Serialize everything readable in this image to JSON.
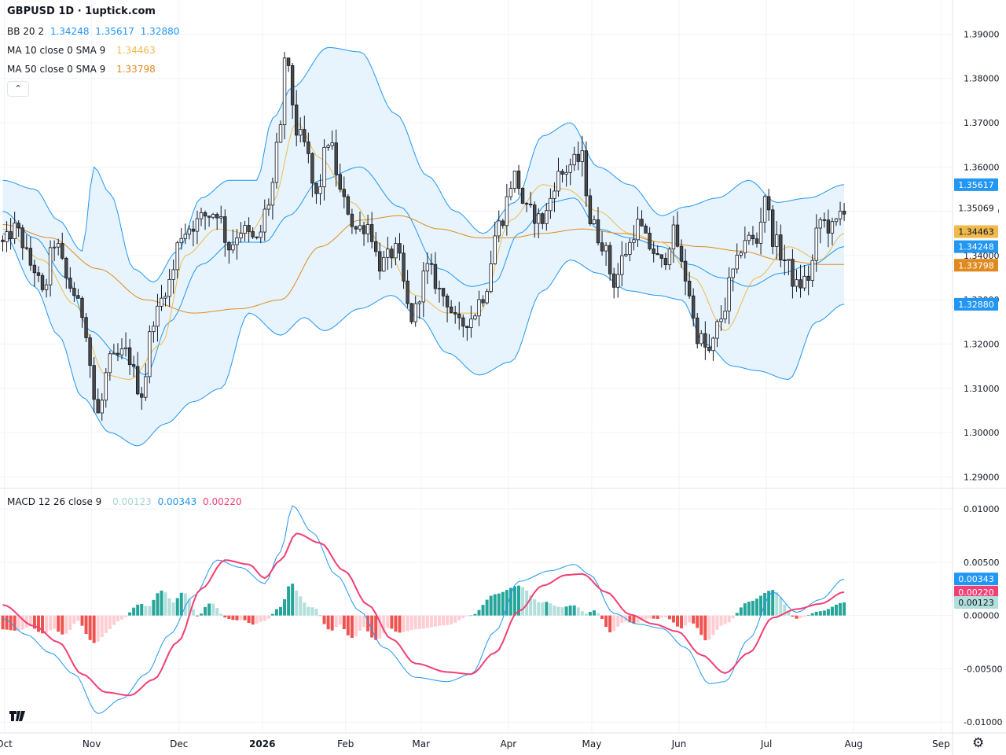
{
  "title": "GBPUSD 1D · 1uptick.com",
  "legend": {
    "bb": {
      "label": "BB 20 2",
      "basis": "1.34248",
      "upper": "1.35617",
      "lower": "1.32880"
    },
    "ma10": {
      "label": "MA 10 close 0 SMA 9",
      "value": "1.34463"
    },
    "ma50": {
      "label": "MA 50 close 0 SMA 9",
      "value": "1.33798"
    },
    "macd": {
      "label": "MACD 12 26 close 9",
      "hist": "0.00123",
      "macd": "0.00343",
      "signal": "0.00220"
    }
  },
  "colors": {
    "bb_line": "#2196f3",
    "bb_fill": "#e3f2fd",
    "ma10": "#f0b94b",
    "ma50": "#e08a1e",
    "macd_line": "#2196f3",
    "signal_line": "#f23f75",
    "hist_up_strong": "#26a69a",
    "hist_up_weak": "#b2dfdb",
    "hist_down_strong": "#ef5350",
    "hist_down_weak": "#ffcdd2",
    "candle_up_body": "#ffffff",
    "candle_down_body": "#4a4a4a"
  },
  "badges": {
    "bb_upper": "1.35617",
    "last_price": "1.35069",
    "ma10": "1.34463",
    "bb_basis": "1.34248",
    "ma50": "1.33798",
    "bb_lower": "1.32880",
    "macd": "0.00343",
    "signal": "0.00220",
    "hist": "0.00123"
  },
  "icons": {
    "logo": "tradingview-logo-icon",
    "settings": "gear-icon",
    "collapse": "chevron-up-icon"
  },
  "chart_data": [
    {
      "type": "candlestick",
      "title": "GBPUSD 1D",
      "x_ticks": [
        "Oct",
        "Nov",
        "Dec",
        "2026",
        "Feb",
        "Mar",
        "Apr",
        "May",
        "Jun",
        "Jul",
        "Aug",
        "Sep"
      ],
      "y_ticks": [
        "1.39000",
        "1.38000",
        "1.37000",
        "1.36000",
        "1.35000",
        "1.34000",
        "1.33000",
        "1.32000",
        "1.31000",
        "1.30000",
        "1.29000"
      ],
      "ylim": [
        1.289,
        1.3915
      ],
      "close_anchors": [
        [
          0,
          1.3425
        ],
        [
          3,
          1.346
        ],
        [
          8,
          1.337
        ],
        [
          10,
          1.331
        ],
        [
          13,
          1.343
        ],
        [
          17,
          1.333
        ],
        [
          20,
          1.327
        ],
        [
          24,
          1.304
        ],
        [
          27,
          1.316
        ],
        [
          31,
          1.318
        ],
        [
          35,
          1.309
        ],
        [
          38,
          1.326
        ],
        [
          42,
          1.334
        ],
        [
          45,
          1.345
        ],
        [
          48,
          1.347
        ],
        [
          51,
          1.349
        ],
        [
          54,
          1.35
        ],
        [
          57,
          1.342
        ],
        [
          60,
          1.346
        ],
        [
          64,
          1.343
        ],
        [
          67,
          1.352
        ],
        [
          70,
          1.368
        ],
        [
          71,
          1.385
        ],
        [
          72,
          1.381
        ],
        [
          74,
          1.368
        ],
        [
          76,
          1.365
        ],
        [
          79,
          1.353
        ],
        [
          82,
          1.366
        ],
        [
          86,
          1.352
        ],
        [
          89,
          1.346
        ],
        [
          92,
          1.347
        ],
        [
          95,
          1.338
        ],
        [
          99,
          1.341
        ],
        [
          103,
          1.326
        ],
        [
          107,
          1.337
        ],
        [
          111,
          1.331
        ],
        [
          115,
          1.324
        ],
        [
          118,
          1.326
        ],
        [
          121,
          1.331
        ],
        [
          125,
          1.347
        ],
        [
          129,
          1.358
        ],
        [
          132,
          1.35
        ],
        [
          136,
          1.348
        ],
        [
          140,
          1.358
        ],
        [
          144,
          1.361
        ],
        [
          146,
          1.362
        ],
        [
          148,
          1.348
        ],
        [
          151,
          1.343
        ],
        [
          154,
          1.334
        ],
        [
          157,
          1.341
        ],
        [
          160,
          1.347
        ],
        [
          163,
          1.342
        ],
        [
          166,
          1.338
        ],
        [
          169,
          1.345
        ],
        [
          172,
          1.335
        ],
        [
          175,
          1.322
        ],
        [
          178,
          1.318
        ],
        [
          181,
          1.326
        ],
        [
          184,
          1.336
        ],
        [
          187,
          1.344
        ],
        [
          190,
          1.343
        ],
        [
          192,
          1.354
        ],
        [
          194,
          1.344
        ],
        [
          197,
          1.339
        ],
        [
          200,
          1.333
        ],
        [
          203,
          1.335
        ],
        [
          206,
          1.348
        ],
        [
          209,
          1.346
        ],
        [
          212,
          1.351
        ]
      ],
      "bb_upper_anchors": [
        [
          0,
          1.357
        ],
        [
          8,
          1.355
        ],
        [
          14,
          1.348
        ],
        [
          20,
          1.341
        ],
        [
          23,
          1.36
        ],
        [
          27,
          1.354
        ],
        [
          33,
          1.337
        ],
        [
          38,
          1.334
        ],
        [
          44,
          1.341
        ],
        [
          50,
          1.353
        ],
        [
          57,
          1.357
        ],
        [
          64,
          1.357
        ],
        [
          68,
          1.371
        ],
        [
          73,
          1.378
        ],
        [
          82,
          1.387
        ],
        [
          90,
          1.386
        ],
        [
          99,
          1.372
        ],
        [
          107,
          1.358
        ],
        [
          114,
          1.35
        ],
        [
          121,
          1.345
        ],
        [
          129,
          1.352
        ],
        [
          136,
          1.367
        ],
        [
          143,
          1.37
        ],
        [
          150,
          1.36
        ],
        [
          158,
          1.356
        ],
        [
          166,
          1.349
        ],
        [
          172,
          1.351
        ],
        [
          180,
          1.353
        ],
        [
          188,
          1.357
        ],
        [
          195,
          1.352
        ],
        [
          203,
          1.353
        ],
        [
          212,
          1.356
        ]
      ],
      "bb_basis_anchors": [
        [
          0,
          1.35
        ],
        [
          8,
          1.344
        ],
        [
          16,
          1.335
        ],
        [
          22,
          1.323
        ],
        [
          30,
          1.317
        ],
        [
          36,
          1.313
        ],
        [
          42,
          1.325
        ],
        [
          50,
          1.338
        ],
        [
          58,
          1.343
        ],
        [
          66,
          1.343
        ],
        [
          72,
          1.349
        ],
        [
          80,
          1.357
        ],
        [
          90,
          1.36
        ],
        [
          100,
          1.351
        ],
        [
          110,
          1.337
        ],
        [
          118,
          1.333
        ],
        [
          124,
          1.334
        ],
        [
          130,
          1.345
        ],
        [
          138,
          1.352
        ],
        [
          144,
          1.353
        ],
        [
          150,
          1.346
        ],
        [
          158,
          1.344
        ],
        [
          166,
          1.342
        ],
        [
          173,
          1.338
        ],
        [
          181,
          1.335
        ],
        [
          188,
          1.333
        ],
        [
          196,
          1.336
        ],
        [
          204,
          1.338
        ],
        [
          212,
          1.342
        ]
      ],
      "bb_lower_anchors": [
        [
          0,
          1.345
        ],
        [
          8,
          1.333
        ],
        [
          14,
          1.322
        ],
        [
          20,
          1.308
        ],
        [
          27,
          1.3
        ],
        [
          34,
          1.297
        ],
        [
          41,
          1.302
        ],
        [
          48,
          1.307
        ],
        [
          55,
          1.31
        ],
        [
          62,
          1.327
        ],
        [
          70,
          1.322
        ],
        [
          76,
          1.326
        ],
        [
          81,
          1.323
        ],
        [
          90,
          1.328
        ],
        [
          98,
          1.331
        ],
        [
          105,
          1.326
        ],
        [
          112,
          1.318
        ],
        [
          120,
          1.313
        ],
        [
          128,
          1.316
        ],
        [
          136,
          1.332
        ],
        [
          143,
          1.339
        ],
        [
          150,
          1.336
        ],
        [
          158,
          1.332
        ],
        [
          165,
          1.331
        ],
        [
          171,
          1.33
        ],
        [
          177,
          1.32
        ],
        [
          184,
          1.315
        ],
        [
          190,
          1.314
        ],
        [
          198,
          1.312
        ],
        [
          205,
          1.325
        ],
        [
          212,
          1.329
        ]
      ],
      "ma10_anchors": [
        [
          0,
          1.346
        ],
        [
          10,
          1.339
        ],
        [
          18,
          1.329
        ],
        [
          26,
          1.313
        ],
        [
          32,
          1.312
        ],
        [
          40,
          1.32
        ],
        [
          46,
          1.34
        ],
        [
          54,
          1.346
        ],
        [
          62,
          1.345
        ],
        [
          68,
          1.352
        ],
        [
          74,
          1.37
        ],
        [
          80,
          1.362
        ],
        [
          88,
          1.352
        ],
        [
          96,
          1.342
        ],
        [
          104,
          1.331
        ],
        [
          112,
          1.327
        ],
        [
          120,
          1.327
        ],
        [
          128,
          1.348
        ],
        [
          136,
          1.356
        ],
        [
          142,
          1.355
        ],
        [
          150,
          1.35
        ],
        [
          158,
          1.345
        ],
        [
          166,
          1.343
        ],
        [
          174,
          1.335
        ],
        [
          182,
          1.323
        ],
        [
          190,
          1.335
        ],
        [
          198,
          1.342
        ],
        [
          206,
          1.339
        ],
        [
          212,
          1.345
        ]
      ],
      "ma50_anchors": [
        [
          0,
          1.347
        ],
        [
          12,
          1.344
        ],
        [
          24,
          1.337
        ],
        [
          36,
          1.33
        ],
        [
          48,
          1.327
        ],
        [
          60,
          1.328
        ],
        [
          70,
          1.33
        ],
        [
          80,
          1.342
        ],
        [
          90,
          1.348
        ],
        [
          100,
          1.349
        ],
        [
          110,
          1.346
        ],
        [
          120,
          1.344
        ],
        [
          128,
          1.344
        ],
        [
          136,
          1.345
        ],
        [
          146,
          1.346
        ],
        [
          156,
          1.345
        ],
        [
          166,
          1.343
        ],
        [
          176,
          1.342
        ],
        [
          186,
          1.341
        ],
        [
          196,
          1.339
        ],
        [
          206,
          1.338
        ],
        [
          212,
          1.338
        ]
      ],
      "series": [
        {
          "name": "BB 20 2",
          "values": [
            "1.34248",
            "1.35617",
            "1.32880"
          ]
        },
        {
          "name": "MA 10 close 0 SMA 9",
          "values": [
            "1.34463"
          ]
        },
        {
          "name": "MA 50 close 0 SMA 9",
          "values": [
            "1.33798"
          ]
        }
      ]
    },
    {
      "type": "line",
      "title": "MACD 12 26 close 9",
      "y_ticks": [
        "0.01000",
        "0.00500",
        "0.00000",
        "-0.00500",
        "-0.01000"
      ],
      "ylim": [
        -0.0105,
        0.0103
      ],
      "macd_anchors": [
        [
          0,
          -0.0003
        ],
        [
          6,
          -0.0018
        ],
        [
          12,
          -0.0035
        ],
        [
          18,
          -0.0055
        ],
        [
          24,
          -0.0092
        ],
        [
          30,
          -0.0078
        ],
        [
          36,
          -0.0055
        ],
        [
          42,
          -0.0018
        ],
        [
          48,
          0.0018
        ],
        [
          54,
          0.0052
        ],
        [
          60,
          0.0045
        ],
        [
          66,
          0.003
        ],
        [
          70,
          0.006
        ],
        [
          73,
          0.0103
        ],
        [
          78,
          0.0078
        ],
        [
          84,
          0.0038
        ],
        [
          90,
          0.0004
        ],
        [
          96,
          -0.003
        ],
        [
          104,
          -0.0058
        ],
        [
          112,
          -0.0062
        ],
        [
          118,
          -0.0055
        ],
        [
          124,
          -0.0015
        ],
        [
          130,
          0.0032
        ],
        [
          138,
          0.0042
        ],
        [
          144,
          0.0048
        ],
        [
          148,
          0.0038
        ],
        [
          154,
          0.0002
        ],
        [
          160,
          -0.0008
        ],
        [
          166,
          -0.0012
        ],
        [
          172,
          -0.003
        ],
        [
          178,
          -0.0064
        ],
        [
          182,
          -0.0062
        ],
        [
          188,
          -0.0022
        ],
        [
          194,
          0.0022
        ],
        [
          200,
          0.0003
        ],
        [
          206,
          0.0015
        ],
        [
          212,
          0.00343
        ]
      ],
      "signal_anchors": [
        [
          0,
          0.001
        ],
        [
          8,
          -0.001
        ],
        [
          14,
          -0.0025
        ],
        [
          20,
          -0.0055
        ],
        [
          26,
          -0.0072
        ],
        [
          32,
          -0.0075
        ],
        [
          38,
          -0.006
        ],
        [
          44,
          -0.0025
        ],
        [
          50,
          0.0025
        ],
        [
          56,
          0.0052
        ],
        [
          62,
          0.0048
        ],
        [
          66,
          0.0035
        ],
        [
          70,
          0.0052
        ],
        [
          74,
          0.0077
        ],
        [
          80,
          0.0068
        ],
        [
          86,
          0.0042
        ],
        [
          92,
          0.001
        ],
        [
          98,
          -0.0022
        ],
        [
          104,
          -0.0045
        ],
        [
          112,
          -0.0053
        ],
        [
          118,
          -0.0055
        ],
        [
          124,
          -0.0035
        ],
        [
          130,
          0.0004
        ],
        [
          136,
          0.0028
        ],
        [
          142,
          0.0038
        ],
        [
          146,
          0.0039
        ],
        [
          152,
          0.0022
        ],
        [
          158,
          0.0001
        ],
        [
          164,
          -0.0008
        ],
        [
          170,
          -0.0015
        ],
        [
          176,
          -0.0037
        ],
        [
          182,
          -0.0054
        ],
        [
          188,
          -0.0035
        ],
        [
          194,
          -0.0002
        ],
        [
          200,
          0.0006
        ],
        [
          206,
          0.0011
        ],
        [
          212,
          0.0022
        ]
      ],
      "series": [
        {
          "name": "MACD",
          "values": [
            "0.00343"
          ]
        },
        {
          "name": "Signal",
          "values": [
            "0.00220"
          ]
        },
        {
          "name": "Histogram",
          "values": [
            "0.00123"
          ]
        }
      ]
    }
  ]
}
